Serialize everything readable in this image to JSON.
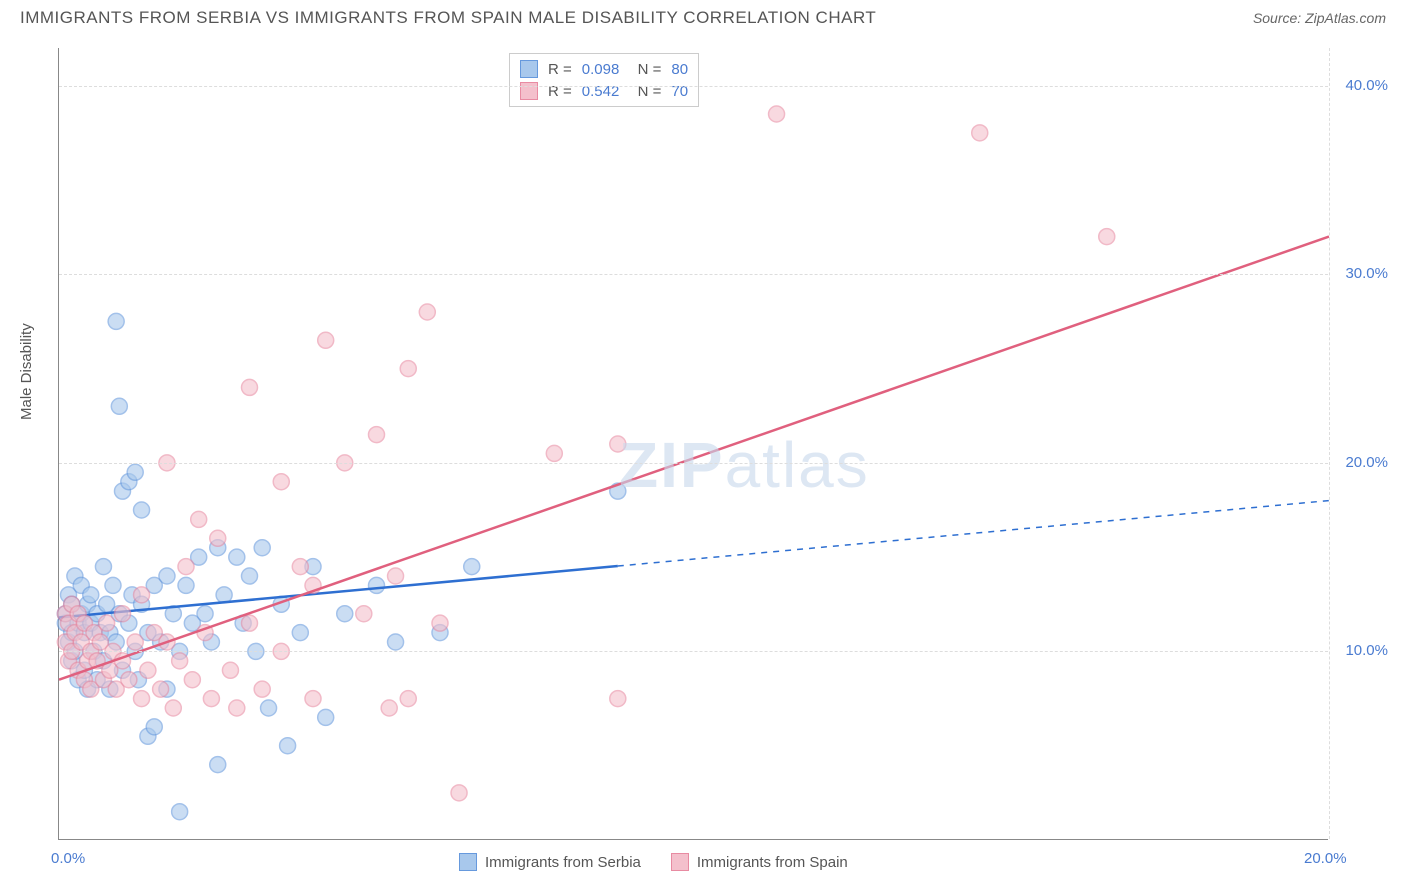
{
  "header": {
    "title": "IMMIGRANTS FROM SERBIA VS IMMIGRANTS FROM SPAIN MALE DISABILITY CORRELATION CHART",
    "source": "Source: ZipAtlas.com"
  },
  "chart": {
    "type": "scatter",
    "ylabel": "Male Disability",
    "watermark": "ZIPatlas",
    "background_color": "#ffffff",
    "grid_color": "#dddddd",
    "axis_color": "#888888",
    "tick_label_color": "#4a7bd0",
    "label_color": "#555555",
    "label_fontsize": 15,
    "xlim": [
      0,
      20
    ],
    "ylim": [
      0,
      42
    ],
    "xticks": [
      {
        "value": 0,
        "label": "0.0%"
      },
      {
        "value": 20,
        "label": "20.0%"
      }
    ],
    "yticks": [
      {
        "value": 10,
        "label": "10.0%"
      },
      {
        "value": 20,
        "label": "20.0%"
      },
      {
        "value": 30,
        "label": "30.0%"
      },
      {
        "value": 40,
        "label": "40.0%"
      }
    ],
    "series": [
      {
        "name": "Immigrants from Serbia",
        "marker_color": "#a8c8ec",
        "marker_border": "#6699dd",
        "line_color": "#2e6fd1",
        "marker_radius": 8,
        "marker_opacity": 0.6,
        "r_value": "0.098",
        "n_value": "80",
        "regression": {
          "x1": 0,
          "y1": 11.8,
          "x2": 20,
          "y2": 18.0,
          "solid_until_x": 8.8
        },
        "points": [
          [
            0.1,
            11.5
          ],
          [
            0.1,
            12.0
          ],
          [
            0.15,
            13.0
          ],
          [
            0.15,
            10.5
          ],
          [
            0.2,
            11.0
          ],
          [
            0.2,
            12.5
          ],
          [
            0.2,
            9.5
          ],
          [
            0.25,
            14.0
          ],
          [
            0.25,
            10.0
          ],
          [
            0.3,
            11.5
          ],
          [
            0.3,
            8.5
          ],
          [
            0.35,
            12.0
          ],
          [
            0.35,
            13.5
          ],
          [
            0.4,
            11.0
          ],
          [
            0.4,
            9.0
          ],
          [
            0.45,
            12.5
          ],
          [
            0.45,
            8.0
          ],
          [
            0.5,
            11.5
          ],
          [
            0.5,
            13.0
          ],
          [
            0.55,
            10.0
          ],
          [
            0.6,
            12.0
          ],
          [
            0.6,
            8.5
          ],
          [
            0.65,
            11.0
          ],
          [
            0.7,
            14.5
          ],
          [
            0.7,
            9.5
          ],
          [
            0.75,
            12.5
          ],
          [
            0.8,
            11.0
          ],
          [
            0.8,
            8.0
          ],
          [
            0.85,
            13.5
          ],
          [
            0.9,
            10.5
          ],
          [
            0.9,
            27.5
          ],
          [
            0.95,
            12.0
          ],
          [
            0.95,
            23.0
          ],
          [
            1.0,
            9.0
          ],
          [
            1.0,
            18.5
          ],
          [
            1.1,
            11.5
          ],
          [
            1.1,
            19.0
          ],
          [
            1.15,
            13.0
          ],
          [
            1.2,
            10.0
          ],
          [
            1.2,
            19.5
          ],
          [
            1.25,
            8.5
          ],
          [
            1.3,
            12.5
          ],
          [
            1.3,
            17.5
          ],
          [
            1.4,
            11.0
          ],
          [
            1.4,
            5.5
          ],
          [
            1.5,
            13.5
          ],
          [
            1.5,
            6.0
          ],
          [
            1.6,
            10.5
          ],
          [
            1.7,
            14.0
          ],
          [
            1.7,
            8.0
          ],
          [
            1.8,
            12.0
          ],
          [
            1.9,
            10.0
          ],
          [
            1.9,
            1.5
          ],
          [
            2.0,
            13.5
          ],
          [
            2.1,
            11.5
          ],
          [
            2.2,
            15.0
          ],
          [
            2.3,
            12.0
          ],
          [
            2.4,
            10.5
          ],
          [
            2.5,
            15.5
          ],
          [
            2.5,
            4.0
          ],
          [
            2.6,
            13.0
          ],
          [
            2.8,
            15.0
          ],
          [
            2.9,
            11.5
          ],
          [
            3.0,
            14.0
          ],
          [
            3.1,
            10.0
          ],
          [
            3.2,
            15.5
          ],
          [
            3.3,
            7.0
          ],
          [
            3.5,
            12.5
          ],
          [
            3.6,
            5.0
          ],
          [
            3.8,
            11.0
          ],
          [
            4.0,
            14.5
          ],
          [
            4.2,
            6.5
          ],
          [
            4.5,
            12.0
          ],
          [
            5.0,
            13.5
          ],
          [
            5.3,
            10.5
          ],
          [
            6.0,
            11.0
          ],
          [
            6.5,
            14.5
          ],
          [
            8.8,
            18.5
          ]
        ]
      },
      {
        "name": "Immigrants from Spain",
        "marker_color": "#f4c0cc",
        "marker_border": "#e88ba2",
        "line_color": "#e0607e",
        "marker_radius": 8,
        "marker_opacity": 0.6,
        "r_value": "0.542",
        "n_value": "70",
        "regression": {
          "x1": 0,
          "y1": 8.5,
          "x2": 20,
          "y2": 32.0,
          "solid_until_x": 20
        },
        "points": [
          [
            0.1,
            12.0
          ],
          [
            0.1,
            10.5
          ],
          [
            0.15,
            11.5
          ],
          [
            0.15,
            9.5
          ],
          [
            0.2,
            12.5
          ],
          [
            0.2,
            10.0
          ],
          [
            0.25,
            11.0
          ],
          [
            0.3,
            9.0
          ],
          [
            0.3,
            12.0
          ],
          [
            0.35,
            10.5
          ],
          [
            0.4,
            8.5
          ],
          [
            0.4,
            11.5
          ],
          [
            0.45,
            9.5
          ],
          [
            0.5,
            10.0
          ],
          [
            0.5,
            8.0
          ],
          [
            0.55,
            11.0
          ],
          [
            0.6,
            9.5
          ],
          [
            0.65,
            10.5
          ],
          [
            0.7,
            8.5
          ],
          [
            0.75,
            11.5
          ],
          [
            0.8,
            9.0
          ],
          [
            0.85,
            10.0
          ],
          [
            0.9,
            8.0
          ],
          [
            1.0,
            9.5
          ],
          [
            1.0,
            12.0
          ],
          [
            1.1,
            8.5
          ],
          [
            1.2,
            10.5
          ],
          [
            1.3,
            7.5
          ],
          [
            1.3,
            13.0
          ],
          [
            1.4,
            9.0
          ],
          [
            1.5,
            11.0
          ],
          [
            1.6,
            8.0
          ],
          [
            1.7,
            10.5
          ],
          [
            1.7,
            20.0
          ],
          [
            1.8,
            7.0
          ],
          [
            1.9,
            9.5
          ],
          [
            2.0,
            14.5
          ],
          [
            2.1,
            8.5
          ],
          [
            2.2,
            17.0
          ],
          [
            2.3,
            11.0
          ],
          [
            2.4,
            7.5
          ],
          [
            2.5,
            16.0
          ],
          [
            2.7,
            9.0
          ],
          [
            2.8,
            7.0
          ],
          [
            3.0,
            11.5
          ],
          [
            3.0,
            24.0
          ],
          [
            3.2,
            8.0
          ],
          [
            3.5,
            10.0
          ],
          [
            3.5,
            19.0
          ],
          [
            3.8,
            14.5
          ],
          [
            4.0,
            7.5
          ],
          [
            4.0,
            13.5
          ],
          [
            4.2,
            26.5
          ],
          [
            4.5,
            20.0
          ],
          [
            4.8,
            12.0
          ],
          [
            5.0,
            21.5
          ],
          [
            5.2,
            7.0
          ],
          [
            5.3,
            14.0
          ],
          [
            5.5,
            7.5
          ],
          [
            5.5,
            25.0
          ],
          [
            5.8,
            28.0
          ],
          [
            6.0,
            11.5
          ],
          [
            6.3,
            2.5
          ],
          [
            7.8,
            20.5
          ],
          [
            8.8,
            7.5
          ],
          [
            8.8,
            21.0
          ],
          [
            11.3,
            38.5
          ],
          [
            14.5,
            37.5
          ],
          [
            16.5,
            32.0
          ]
        ]
      }
    ],
    "legend_bottom": [
      {
        "swatch_fill": "#a8c8ec",
        "swatch_border": "#6699dd",
        "label": "Immigrants from Serbia"
      },
      {
        "swatch_fill": "#f4c0cc",
        "swatch_border": "#e88ba2",
        "label": "Immigrants from Spain"
      }
    ]
  }
}
